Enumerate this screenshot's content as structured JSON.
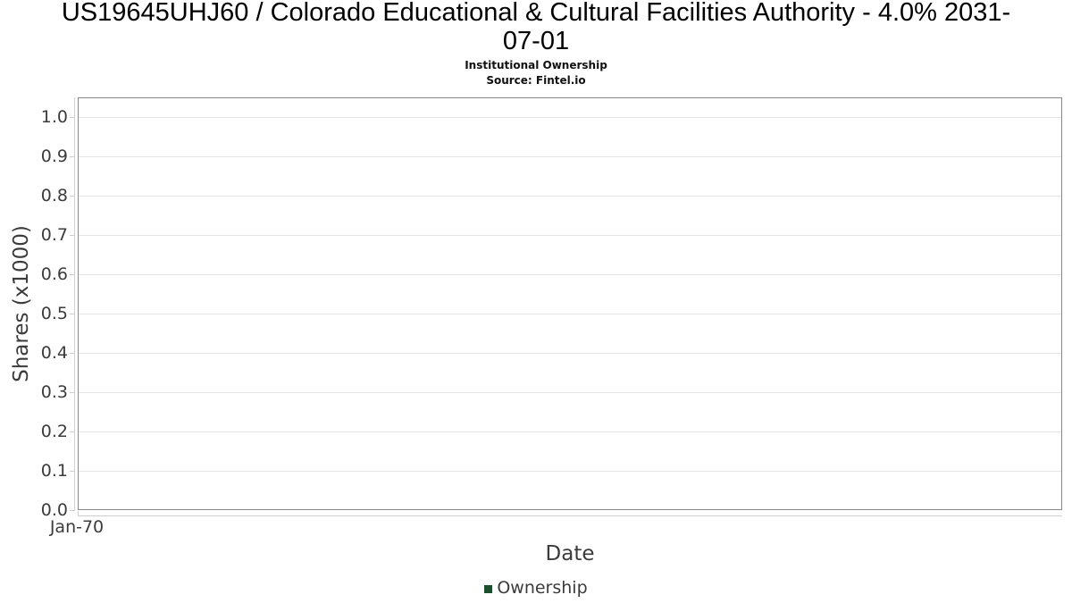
{
  "header": {
    "title_lines": [
      "US19645UHJ60 / Colorado Educational & Cultural Facilities Authority - 4.0% 2031-",
      "07-01"
    ],
    "subtitle": "Institutional Ownership",
    "source": "Source: Fintel.io"
  },
  "chart_data": {
    "type": "line",
    "title": "US19645UHJ60 / Colorado Educational & Cultural Facilities Authority - 4.0% 2031-07-01",
    "subtitle": "Institutional Ownership",
    "source": "Source: Fintel.io",
    "xlabel": "Date",
    "ylabel": "Shares (x1000)",
    "ylim": [
      0.0,
      1.05
    ],
    "grid": "horizontal",
    "legend_position": "bottom",
    "x_ticks": [
      {
        "label": "Jan-70",
        "fraction": 0
      }
    ],
    "y_ticks": [
      {
        "label": "0.0",
        "value": 0.0
      },
      {
        "label": "0.1",
        "value": 0.1
      },
      {
        "label": "0.2",
        "value": 0.2
      },
      {
        "label": "0.3",
        "value": 0.3
      },
      {
        "label": "0.4",
        "value": 0.4
      },
      {
        "label": "0.5",
        "value": 0.5
      },
      {
        "label": "0.6",
        "value": 0.6
      },
      {
        "label": "0.7",
        "value": 0.7
      },
      {
        "label": "0.8",
        "value": 0.8
      },
      {
        "label": "0.9",
        "value": 0.9
      },
      {
        "label": "1.0",
        "value": 1.0
      }
    ],
    "series": [
      {
        "name": "Ownership",
        "color": "#1e4f2d",
        "x": [],
        "values": []
      }
    ]
  },
  "colors": {
    "plot_border": "#878787",
    "gridline": "#e4e4e4",
    "axis_domain": "#cfcfcf",
    "axis_text": "#3b3b3b",
    "title_text": "#000000",
    "legend_green": "#1e4f2d",
    "background": "#ffffff"
  }
}
